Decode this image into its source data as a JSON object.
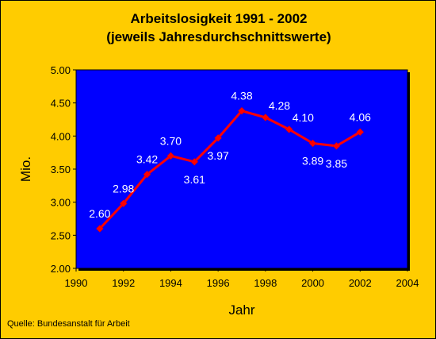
{
  "source_note": "Quelle: Bundesanstalt für Arbeit",
  "colors": {
    "background": "#ffcc00",
    "plot_area": "#0000ff",
    "line": "#ff0000",
    "data_labels": "#ffffff",
    "text": "#000000"
  },
  "chart_data": {
    "type": "line",
    "title": "Arbeitslosigkeit 1991 - 2002",
    "subtitle": "(jeweils Jahresdurchschnittswerte)",
    "xlabel": "Jahr",
    "ylabel": "Mio.",
    "xlim": [
      1990,
      2004
    ],
    "ylim": [
      2.0,
      5.0
    ],
    "x_ticks": [
      "1990",
      "1992",
      "1994",
      "1996",
      "1998",
      "2000",
      "2002",
      "2004"
    ],
    "y_ticks": [
      "2.00",
      "2.50",
      "3.00",
      "3.50",
      "4.00",
      "4.50",
      "5.00"
    ],
    "grid": false,
    "legend": "none",
    "series": [
      {
        "x": [
          1991,
          1992,
          1993,
          1994,
          1995,
          1996,
          1997,
          1998,
          1999,
          2000,
          2001,
          2002
        ],
        "values": [
          2.6,
          2.98,
          3.42,
          3.7,
          3.61,
          3.97,
          4.38,
          4.28,
          4.1,
          3.89,
          3.85,
          4.06
        ],
        "data_labels": [
          "2.60",
          "2.98",
          "3.42",
          "3.70",
          "3.61",
          "3.97",
          "4.38",
          "4.28",
          "4.10",
          "3.89",
          "",
          "4.06"
        ],
        "data_label_positions": [
          "above",
          "above",
          "above",
          "above",
          "below",
          "below",
          "above",
          "right",
          "right",
          "below",
          "below",
          "above"
        ]
      }
    ]
  }
}
